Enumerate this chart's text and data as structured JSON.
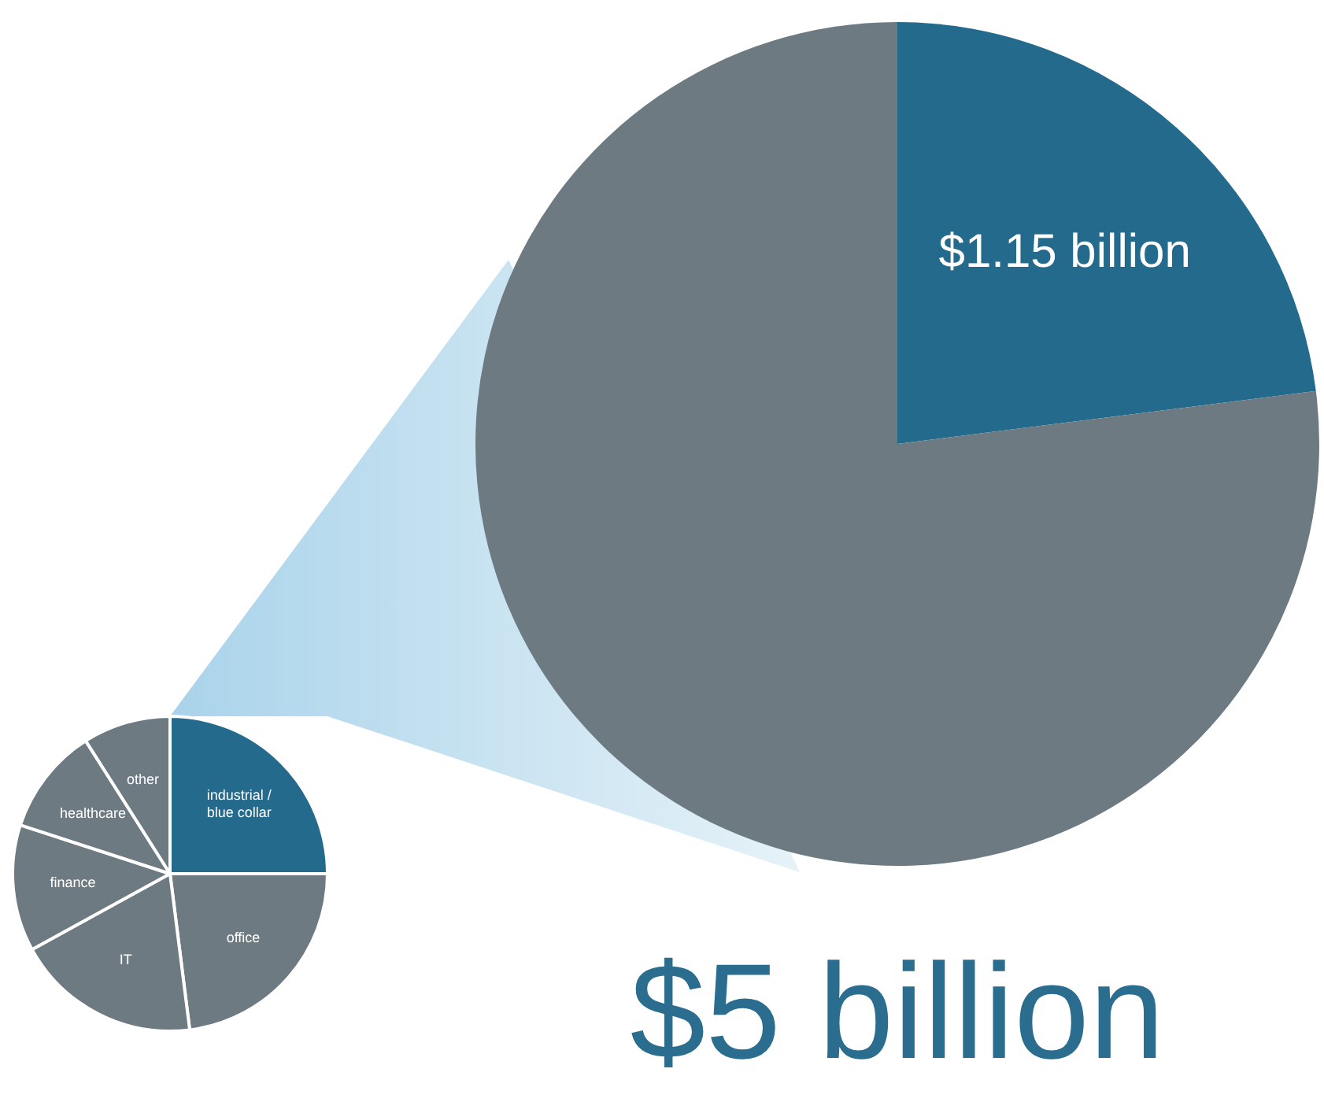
{
  "chart_data": [
    {
      "type": "pie",
      "categories": [
        "industrial / blue collar",
        "office",
        "IT",
        "finance",
        "healthcare",
        "other"
      ],
      "values": [
        25,
        23,
        19,
        13,
        11,
        9
      ],
      "colors": [
        "#236a8c",
        "#6d7a82",
        "#6d7a82",
        "#6d7a82",
        "#6d7a82",
        "#6d7a82"
      ],
      "legend": false
    },
    {
      "type": "pie",
      "categories": [
        null,
        null
      ],
      "values": [
        1.15,
        3.85
      ],
      "value_labels": [
        "$1.15 billion",
        null
      ],
      "colors": [
        "#236a8c",
        "#6d7a82"
      ],
      "legend": false,
      "annotations": [
        "$5 billion"
      ]
    }
  ]
}
